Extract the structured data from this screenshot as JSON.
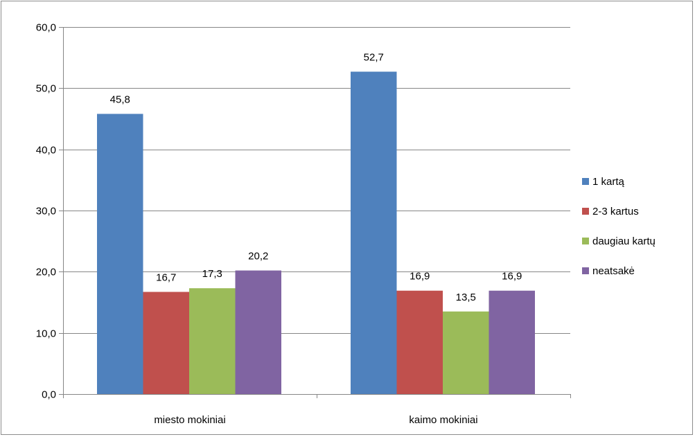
{
  "chart_data": {
    "type": "bar",
    "categories": [
      "miesto mokiniai",
      "kaimo mokiniai"
    ],
    "series": [
      {
        "name": "1 kartą",
        "values": [
          45.8,
          52.7
        ],
        "color": "#4f81bd"
      },
      {
        "name": "2-3 kartus",
        "values": [
          16.7,
          16.9
        ],
        "color": "#c0504d"
      },
      {
        "name": "daugiau kartų",
        "values": [
          17.3,
          13.5
        ],
        "color": "#9bbb59"
      },
      {
        "name": "neatsakė",
        "values": [
          20.2,
          16.9
        ],
        "color": "#8064a2"
      }
    ],
    "value_labels": [
      [
        "45,8",
        "52,7"
      ],
      [
        "16,7",
        "16,9"
      ],
      [
        "17,3",
        "13,5"
      ],
      [
        "20,2",
        "16,9"
      ]
    ],
    "ylim": [
      0,
      60
    ],
    "yticks": [
      0,
      10,
      20,
      30,
      40,
      50,
      60
    ],
    "ytick_labels": [
      "0,0",
      "10,0",
      "20,0",
      "30,0",
      "40,0",
      "50,0",
      "60,0"
    ],
    "grid": true,
    "legend_position": "right",
    "title": "",
    "xlabel": "",
    "ylabel": ""
  }
}
